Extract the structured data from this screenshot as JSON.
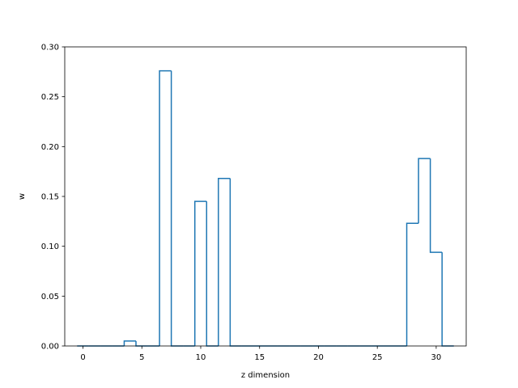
{
  "chart_data": {
    "type": "bar",
    "style": "step-histogram",
    "title": "",
    "xlabel": "z dimension",
    "ylabel": "w",
    "xlim": [
      -1.55,
      32.55
    ],
    "ylim": [
      0,
      0.3
    ],
    "x_ticks": [
      0,
      5,
      10,
      15,
      20,
      25,
      30
    ],
    "y_ticks": [
      0.0,
      0.05,
      0.1,
      0.15,
      0.2,
      0.25,
      0.3
    ],
    "grid": false,
    "legend": "none",
    "bin_width": 1,
    "bin_start": -0.5,
    "x": [
      0,
      1,
      2,
      3,
      4,
      5,
      6,
      7,
      8,
      9,
      10,
      11,
      12,
      13,
      14,
      15,
      16,
      17,
      18,
      19,
      20,
      21,
      22,
      23,
      24,
      25,
      26,
      27,
      28,
      29,
      30,
      31
    ],
    "values": [
      0,
      0,
      0,
      0,
      0.005,
      0,
      0,
      0.276,
      0,
      0,
      0.145,
      0,
      0.168,
      0,
      0,
      0,
      0,
      0,
      0,
      0,
      0,
      0,
      0,
      0,
      0,
      0,
      0,
      0,
      0.123,
      0.188,
      0.094,
      0
    ],
    "line_color": "#1f77b4"
  }
}
